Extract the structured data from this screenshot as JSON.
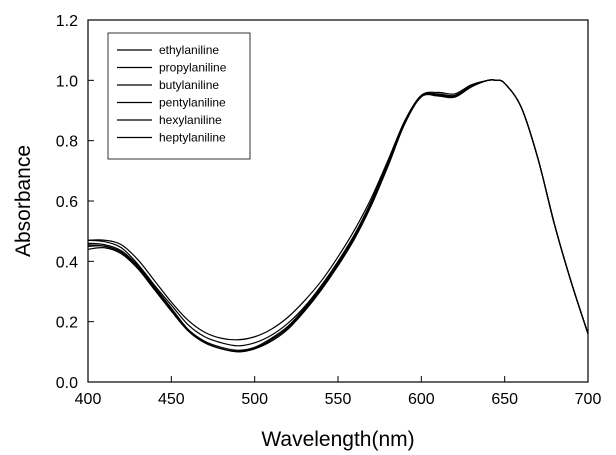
{
  "chart_data": {
    "type": "line",
    "title": "",
    "xlabel": "Wavelength(nm)",
    "ylabel": "Absorbance",
    "xlim": [
      400,
      700
    ],
    "ylim": [
      0.0,
      1.2
    ],
    "x_ticks": [
      400,
      450,
      500,
      550,
      600,
      650,
      700
    ],
    "y_ticks": [
      0.0,
      0.2,
      0.4,
      0.6,
      0.8,
      1.0,
      1.2
    ],
    "x_tick_labels": [
      "400",
      "450",
      "500",
      "550",
      "600",
      "650",
      "700"
    ],
    "y_tick_labels": [
      "0.0",
      "0.2",
      "0.4",
      "0.6",
      "0.8",
      "1.0",
      "1.2"
    ],
    "grid": false,
    "legend_position": "top-left",
    "line_color": "#000000",
    "series": [
      {
        "name": "ethylaniline",
        "x": [
          400,
          410,
          420,
          430,
          440,
          450,
          460,
          470,
          480,
          490,
          500,
          510,
          520,
          530,
          540,
          550,
          560,
          570,
          580,
          590,
          600,
          610,
          620,
          630,
          640,
          645,
          650,
          660,
          670,
          680,
          690,
          700
        ],
        "y": [
          0.45,
          0.45,
          0.43,
          0.38,
          0.31,
          0.24,
          0.17,
          0.13,
          0.11,
          0.1,
          0.11,
          0.14,
          0.18,
          0.24,
          0.31,
          0.39,
          0.48,
          0.59,
          0.72,
          0.86,
          0.95,
          0.95,
          0.945,
          0.98,
          1.0,
          1.0,
          0.99,
          0.91,
          0.74,
          0.52,
          0.33,
          0.16
        ]
      },
      {
        "name": "propylaniline",
        "x": [
          400,
          410,
          420,
          430,
          440,
          450,
          460,
          470,
          480,
          490,
          500,
          510,
          520,
          530,
          540,
          550,
          560,
          570,
          580,
          590,
          600,
          610,
          620,
          630,
          640,
          645,
          650,
          660,
          670,
          680,
          690,
          700
        ],
        "y": [
          0.46,
          0.455,
          0.435,
          0.385,
          0.315,
          0.245,
          0.175,
          0.135,
          0.115,
          0.105,
          0.115,
          0.145,
          0.185,
          0.245,
          0.315,
          0.395,
          0.485,
          0.595,
          0.725,
          0.86,
          0.95,
          0.952,
          0.947,
          0.98,
          1.0,
          1.0,
          0.99,
          0.91,
          0.74,
          0.52,
          0.33,
          0.16
        ]
      },
      {
        "name": "butylaniline",
        "x": [
          400,
          410,
          420,
          430,
          440,
          450,
          460,
          470,
          480,
          490,
          500,
          510,
          520,
          530,
          540,
          550,
          560,
          570,
          580,
          590,
          600,
          610,
          620,
          630,
          640,
          645,
          650,
          660,
          670,
          680,
          690,
          700
        ],
        "y": [
          0.44,
          0.445,
          0.425,
          0.375,
          0.305,
          0.235,
          0.17,
          0.13,
          0.11,
          0.1,
          0.11,
          0.135,
          0.175,
          0.235,
          0.305,
          0.385,
          0.475,
          0.585,
          0.715,
          0.855,
          0.945,
          0.948,
          0.944,
          0.978,
          1.0,
          1.0,
          0.99,
          0.91,
          0.74,
          0.52,
          0.33,
          0.16
        ]
      },
      {
        "name": "pentylaniline",
        "x": [
          400,
          410,
          420,
          430,
          440,
          450,
          460,
          470,
          480,
          490,
          500,
          510,
          520,
          530,
          540,
          550,
          560,
          570,
          580,
          590,
          600,
          610,
          620,
          630,
          640,
          645,
          650,
          660,
          670,
          680,
          690,
          700
        ],
        "y": [
          0.47,
          0.465,
          0.445,
          0.39,
          0.32,
          0.255,
          0.19,
          0.15,
          0.13,
          0.12,
          0.13,
          0.155,
          0.195,
          0.25,
          0.32,
          0.4,
          0.49,
          0.6,
          0.73,
          0.865,
          0.95,
          0.955,
          0.95,
          0.982,
          1.0,
          1.0,
          0.99,
          0.91,
          0.74,
          0.52,
          0.33,
          0.16
        ]
      },
      {
        "name": "hexylaniline",
        "x": [
          400,
          410,
          420,
          430,
          440,
          450,
          460,
          470,
          480,
          490,
          500,
          510,
          520,
          530,
          540,
          550,
          560,
          570,
          580,
          590,
          600,
          610,
          620,
          630,
          640,
          645,
          650,
          660,
          670,
          680,
          690,
          700
        ],
        "y": [
          0.455,
          0.45,
          0.43,
          0.38,
          0.31,
          0.24,
          0.172,
          0.132,
          0.11,
          0.102,
          0.112,
          0.14,
          0.18,
          0.24,
          0.31,
          0.39,
          0.48,
          0.59,
          0.72,
          0.858,
          0.948,
          0.95,
          0.945,
          0.979,
          1.0,
          1.0,
          0.99,
          0.91,
          0.74,
          0.52,
          0.33,
          0.16
        ]
      },
      {
        "name": "heptylaniline",
        "x": [
          400,
          410,
          420,
          430,
          440,
          450,
          460,
          470,
          480,
          490,
          500,
          510,
          520,
          530,
          540,
          550,
          560,
          570,
          580,
          590,
          600,
          610,
          620,
          630,
          640,
          645,
          650,
          660,
          670,
          680,
          690,
          700
        ],
        "y": [
          0.47,
          0.47,
          0.455,
          0.405,
          0.335,
          0.265,
          0.205,
          0.165,
          0.145,
          0.14,
          0.15,
          0.175,
          0.215,
          0.27,
          0.335,
          0.415,
          0.505,
          0.61,
          0.735,
          0.865,
          0.95,
          0.96,
          0.955,
          0.985,
          1.0,
          1.0,
          0.99,
          0.91,
          0.74,
          0.52,
          0.33,
          0.16
        ]
      }
    ]
  }
}
